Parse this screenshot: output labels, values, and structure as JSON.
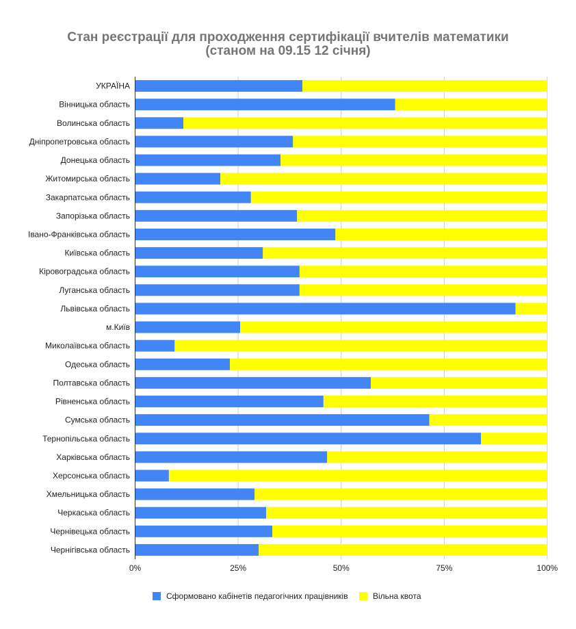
{
  "chart_data": {
    "type": "bar",
    "orientation": "horizontal",
    "stacked": "percent",
    "title": "Стан реєстрації для проходження сертифікації вчителів математики",
    "subtitle": "(станом на 09.15 12 січня)",
    "xlabel": "",
    "ylabel": "",
    "xlim": [
      0,
      100
    ],
    "x_ticks": [
      "0%",
      "25%",
      "50%",
      "75%",
      "100%"
    ],
    "x_tick_values": [
      0,
      25,
      50,
      75,
      100
    ],
    "grid": true,
    "legend_position": "bottom",
    "categories": [
      "УКРАЇНА",
      "Вінницька область",
      "Волинська область",
      "Дніпропетровська область",
      "Донецька область",
      "Житомирська область",
      "Закарпатська область",
      "Запорізька область",
      "Івано-Франківська область",
      "Київська область",
      "Кіровоградська область",
      "Луганська область",
      "Львівська область",
      "м.Київ",
      "Миколаївська область",
      "Одеська область",
      "Полтавська область",
      "Рівненська область",
      "Сумська область",
      "Тернопільська область",
      "Харківська область",
      "Херсонська область",
      "Хмельницька область",
      "Черкаська область",
      "Чернівецька область",
      "Чернігівська область"
    ],
    "series": [
      {
        "name": "Сформовано кабінетів педагогічних працівників",
        "color": "#4285f4",
        "values": [
          40.6,
          63.1,
          11.7,
          38.3,
          35.3,
          20.7,
          28.1,
          39.3,
          48.6,
          31.0,
          39.9,
          39.9,
          92.3,
          25.5,
          9.6,
          23.0,
          57.2,
          45.7,
          71.4,
          83.9,
          46.6,
          8.2,
          29.0,
          31.8,
          33.3,
          30.0
        ]
      },
      {
        "name": "Вільна квота",
        "color": "#ffff00",
        "values": [
          59.4,
          36.9,
          88.3,
          61.7,
          64.7,
          79.3,
          71.9,
          60.7,
          51.4,
          69.0,
          60.1,
          60.1,
          7.7,
          74.5,
          90.4,
          77.0,
          42.8,
          54.3,
          28.6,
          16.1,
          53.4,
          91.8,
          71.0,
          68.2,
          66.7,
          70.0
        ]
      }
    ]
  }
}
